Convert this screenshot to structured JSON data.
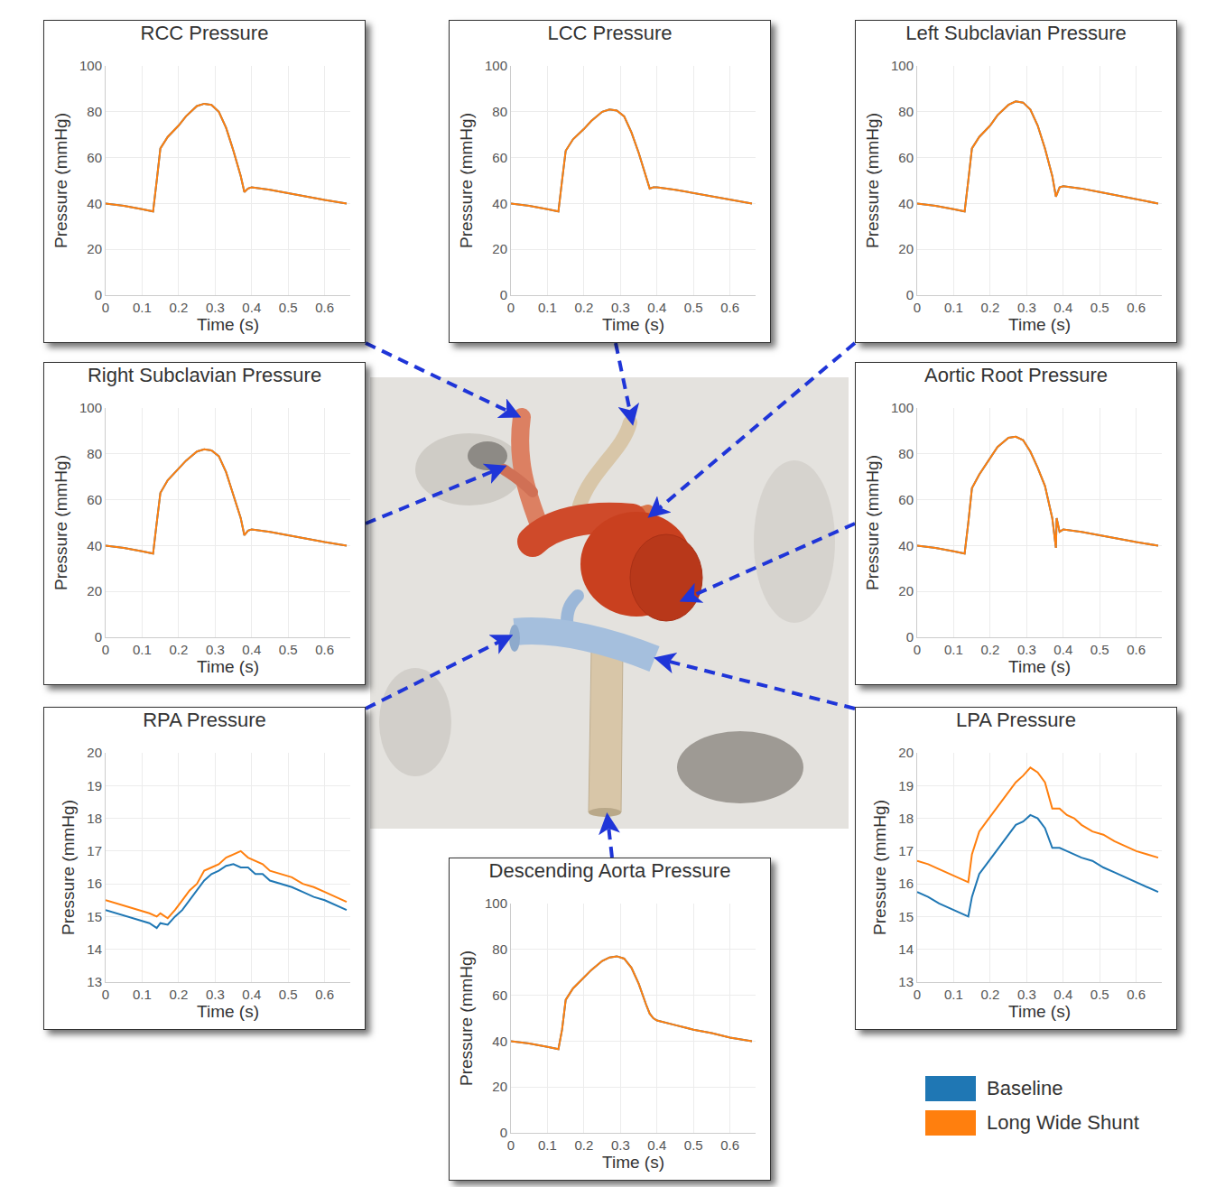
{
  "chart_data": [
    {
      "type": "line",
      "title": "RCC Pressure",
      "x_label": "Time (s)",
      "y_label": "Pressure (mmHg)",
      "x": [
        0,
        0.05,
        0.1,
        0.13,
        0.14,
        0.15,
        0.17,
        0.2,
        0.22,
        0.25,
        0.27,
        0.29,
        0.31,
        0.33,
        0.35,
        0.37,
        0.38,
        0.39,
        0.4,
        0.45,
        0.5,
        0.55,
        0.6,
        0.66
      ],
      "series": [
        {
          "name": "Baseline",
          "color": "#1f77b4",
          "values": [
            40,
            39,
            37.5,
            36.5,
            50,
            64,
            69,
            74,
            78,
            82.5,
            83.5,
            83,
            80,
            73,
            63,
            52,
            45,
            46.5,
            47,
            46,
            44.5,
            43,
            41.5,
            40
          ]
        },
        {
          "name": "Long Wide Shunt",
          "color": "#ff7f0e",
          "values": [
            40,
            39,
            37.5,
            36.5,
            50,
            64,
            69,
            74,
            78,
            82.5,
            83.5,
            83,
            80,
            73,
            63,
            52,
            45,
            46.5,
            47,
            46,
            44.5,
            43,
            41.5,
            40
          ]
        }
      ],
      "xlim": [
        0,
        0.67
      ],
      "xticks": [
        0,
        0.1,
        0.2,
        0.3,
        0.4,
        0.5,
        0.6
      ],
      "ylim": [
        0,
        100
      ],
      "yticks": [
        0,
        20,
        40,
        60,
        80,
        100
      ],
      "grid": true
    },
    {
      "type": "line",
      "title": "LCC Pressure",
      "x_label": "Time (s)",
      "y_label": "Pressure (mmHg)",
      "x": [
        0,
        0.05,
        0.1,
        0.13,
        0.14,
        0.15,
        0.17,
        0.2,
        0.22,
        0.25,
        0.27,
        0.29,
        0.31,
        0.33,
        0.35,
        0.37,
        0.38,
        0.39,
        0.4,
        0.45,
        0.5,
        0.55,
        0.6,
        0.66
      ],
      "series": [
        {
          "name": "Baseline",
          "color": "#1f77b4",
          "values": [
            40,
            39,
            37.5,
            36.5,
            50,
            63,
            68,
            72.5,
            76,
            80,
            81,
            80.5,
            78,
            71,
            62,
            52,
            46.5,
            47,
            47,
            46,
            44.5,
            43,
            41.5,
            40
          ]
        },
        {
          "name": "Long Wide Shunt",
          "color": "#ff7f0e",
          "values": [
            40,
            39,
            37.5,
            36.5,
            50,
            63,
            68,
            72.5,
            76,
            80,
            81,
            80.5,
            78,
            71,
            62,
            52,
            46.5,
            47,
            47,
            46,
            44.5,
            43,
            41.5,
            40
          ]
        }
      ],
      "xlim": [
        0,
        0.67
      ],
      "xticks": [
        0,
        0.1,
        0.2,
        0.3,
        0.4,
        0.5,
        0.6
      ],
      "ylim": [
        0,
        100
      ],
      "yticks": [
        0,
        20,
        40,
        60,
        80,
        100
      ],
      "grid": true
    },
    {
      "type": "line",
      "title": "Left Subclavian Pressure",
      "x_label": "Time (s)",
      "y_label": "Pressure (mmHg)",
      "x": [
        0,
        0.05,
        0.1,
        0.13,
        0.14,
        0.15,
        0.17,
        0.2,
        0.22,
        0.25,
        0.27,
        0.29,
        0.31,
        0.33,
        0.35,
        0.37,
        0.38,
        0.39,
        0.4,
        0.45,
        0.5,
        0.55,
        0.6,
        0.66
      ],
      "series": [
        {
          "name": "Baseline",
          "color": "#1f77b4",
          "values": [
            40,
            39,
            37.5,
            36.5,
            50,
            64,
            69,
            74,
            78.5,
            83,
            84.5,
            84,
            81,
            74,
            64,
            52,
            43,
            47,
            47.5,
            46.5,
            45,
            43.5,
            42,
            40
          ]
        },
        {
          "name": "Long Wide Shunt",
          "color": "#ff7f0e",
          "values": [
            40,
            39,
            37.5,
            36.5,
            50,
            64,
            69,
            74,
            78.5,
            83,
            84.5,
            84,
            81,
            74,
            64,
            52,
            43,
            47,
            47.5,
            46.5,
            45,
            43.5,
            42,
            40
          ]
        }
      ],
      "xlim": [
        0,
        0.67
      ],
      "xticks": [
        0,
        0.1,
        0.2,
        0.3,
        0.4,
        0.5,
        0.6
      ],
      "ylim": [
        0,
        100
      ],
      "yticks": [
        0,
        20,
        40,
        60,
        80,
        100
      ],
      "grid": true
    },
    {
      "type": "line",
      "title": "Right Subclavian Pressure",
      "x_label": "Time (s)",
      "y_label": "Pressure (mmHg)",
      "x": [
        0,
        0.05,
        0.1,
        0.13,
        0.14,
        0.15,
        0.17,
        0.2,
        0.22,
        0.25,
        0.27,
        0.29,
        0.31,
        0.33,
        0.35,
        0.37,
        0.38,
        0.39,
        0.4,
        0.45,
        0.5,
        0.55,
        0.6,
        0.66
      ],
      "series": [
        {
          "name": "Baseline",
          "color": "#1f77b4",
          "values": [
            40,
            39,
            37.5,
            36.5,
            50,
            63,
            68.5,
            73.5,
            77,
            81,
            82,
            81.5,
            79,
            72,
            62,
            52,
            44.5,
            46.5,
            47,
            46,
            44.5,
            43,
            41.5,
            40
          ]
        },
        {
          "name": "Long Wide Shunt",
          "color": "#ff7f0e",
          "values": [
            40,
            39,
            37.5,
            36.5,
            50,
            63,
            68.5,
            73.5,
            77,
            81,
            82,
            81.5,
            79,
            72,
            62,
            52,
            44.5,
            46.5,
            47,
            46,
            44.5,
            43,
            41.5,
            40
          ]
        }
      ],
      "xlim": [
        0,
        0.67
      ],
      "xticks": [
        0,
        0.1,
        0.2,
        0.3,
        0.4,
        0.5,
        0.6
      ],
      "ylim": [
        0,
        100
      ],
      "yticks": [
        0,
        20,
        40,
        60,
        80,
        100
      ],
      "grid": true
    },
    {
      "type": "line",
      "title": "Aortic Root Pressure",
      "x_label": "Time (s)",
      "y_label": "Pressure (mmHg)",
      "x": [
        0,
        0.05,
        0.1,
        0.13,
        0.14,
        0.15,
        0.17,
        0.2,
        0.22,
        0.25,
        0.27,
        0.29,
        0.31,
        0.33,
        0.35,
        0.37,
        0.38,
        0.382,
        0.39,
        0.4,
        0.45,
        0.5,
        0.55,
        0.6,
        0.66
      ],
      "series": [
        {
          "name": "Baseline",
          "color": "#1f77b4",
          "values": [
            40,
            39,
            37.5,
            36.5,
            50,
            65,
            71,
            78,
            83,
            87,
            87.5,
            86,
            81,
            74,
            66,
            52,
            39,
            52,
            46,
            47,
            46,
            44.5,
            43,
            41.5,
            40
          ]
        },
        {
          "name": "Long Wide Shunt",
          "color": "#ff7f0e",
          "values": [
            40,
            39,
            37.5,
            36.5,
            50,
            65,
            71,
            78,
            83,
            87,
            87.5,
            86,
            81,
            74,
            66,
            52,
            39,
            52,
            46,
            47,
            46,
            44.5,
            43,
            41.5,
            40
          ]
        }
      ],
      "xlim": [
        0,
        0.67
      ],
      "xticks": [
        0,
        0.1,
        0.2,
        0.3,
        0.4,
        0.5,
        0.6
      ],
      "ylim": [
        0,
        100
      ],
      "yticks": [
        0,
        20,
        40,
        60,
        80,
        100
      ],
      "grid": true
    },
    {
      "type": "line",
      "title": "RPA Pressure",
      "x_label": "Time (s)",
      "y_label": "Pressure (mmHg)",
      "x": [
        0,
        0.03,
        0.06,
        0.09,
        0.12,
        0.14,
        0.15,
        0.17,
        0.19,
        0.21,
        0.23,
        0.25,
        0.27,
        0.29,
        0.31,
        0.33,
        0.35,
        0.37,
        0.39,
        0.41,
        0.43,
        0.45,
        0.48,
        0.51,
        0.54,
        0.57,
        0.6,
        0.63,
        0.66
      ],
      "series": [
        {
          "name": "Baseline",
          "color": "#1f77b4",
          "values": [
            15.2,
            15.1,
            15.0,
            14.9,
            14.8,
            14.65,
            14.8,
            14.75,
            15.0,
            15.2,
            15.5,
            15.8,
            16.1,
            16.3,
            16.4,
            16.55,
            16.6,
            16.5,
            16.5,
            16.3,
            16.3,
            16.1,
            16.0,
            15.9,
            15.75,
            15.6,
            15.5,
            15.35,
            15.2
          ]
        },
        {
          "name": "Long Wide Shunt",
          "color": "#ff7f0e",
          "values": [
            15.5,
            15.4,
            15.3,
            15.2,
            15.1,
            15.0,
            15.1,
            14.95,
            15.2,
            15.5,
            15.8,
            16.0,
            16.4,
            16.5,
            16.6,
            16.8,
            16.9,
            17.0,
            16.8,
            16.7,
            16.6,
            16.4,
            16.3,
            16.2,
            16.0,
            15.9,
            15.75,
            15.6,
            15.45
          ]
        }
      ],
      "xlim": [
        0,
        0.67
      ],
      "xticks": [
        0,
        0.1,
        0.2,
        0.3,
        0.4,
        0.5,
        0.6
      ],
      "ylim": [
        13,
        20
      ],
      "yticks": [
        13,
        14,
        15,
        16,
        17,
        18,
        19,
        20
      ],
      "grid": true
    },
    {
      "type": "line",
      "title": "LPA Pressure",
      "x_label": "Time (s)",
      "y_label": "Pressure (mmHg)",
      "x": [
        0,
        0.03,
        0.06,
        0.09,
        0.12,
        0.14,
        0.15,
        0.17,
        0.19,
        0.21,
        0.23,
        0.25,
        0.27,
        0.29,
        0.31,
        0.33,
        0.35,
        0.37,
        0.39,
        0.41,
        0.43,
        0.45,
        0.48,
        0.51,
        0.54,
        0.57,
        0.6,
        0.63,
        0.66
      ],
      "series": [
        {
          "name": "Baseline",
          "color": "#1f77b4",
          "values": [
            15.75,
            15.6,
            15.4,
            15.25,
            15.1,
            15.0,
            15.6,
            16.3,
            16.6,
            16.9,
            17.2,
            17.5,
            17.8,
            17.9,
            18.1,
            18.0,
            17.7,
            17.1,
            17.1,
            17.0,
            16.9,
            16.8,
            16.7,
            16.5,
            16.35,
            16.2,
            16.05,
            15.9,
            15.75
          ]
        },
        {
          "name": "Long Wide Shunt",
          "color": "#ff7f0e",
          "values": [
            16.7,
            16.6,
            16.45,
            16.3,
            16.15,
            16.05,
            16.9,
            17.6,
            17.9,
            18.2,
            18.5,
            18.8,
            19.1,
            19.3,
            19.55,
            19.4,
            19.1,
            18.3,
            18.3,
            18.1,
            18.0,
            17.8,
            17.6,
            17.5,
            17.3,
            17.15,
            17.0,
            16.9,
            16.8
          ]
        }
      ],
      "xlim": [
        0,
        0.67
      ],
      "xticks": [
        0,
        0.1,
        0.2,
        0.3,
        0.4,
        0.5,
        0.6
      ],
      "ylim": [
        13,
        20
      ],
      "yticks": [
        13,
        14,
        15,
        16,
        17,
        18,
        19,
        20
      ],
      "grid": true
    },
    {
      "type": "line",
      "title": "Descending Aorta Pressure",
      "x_label": "Time (s)",
      "y_label": "Pressure (mmHg)",
      "x": [
        0,
        0.05,
        0.1,
        0.13,
        0.14,
        0.15,
        0.17,
        0.2,
        0.22,
        0.25,
        0.27,
        0.29,
        0.31,
        0.33,
        0.35,
        0.37,
        0.38,
        0.39,
        0.4,
        0.45,
        0.5,
        0.55,
        0.6,
        0.66
      ],
      "series": [
        {
          "name": "Baseline",
          "color": "#1f77b4",
          "values": [
            40,
            39,
            37.5,
            36.5,
            45,
            58,
            63,
            68,
            71,
            75,
            76.5,
            77,
            76,
            72,
            65,
            56,
            52,
            50,
            49,
            47,
            45,
            43.5,
            41.5,
            40
          ]
        },
        {
          "name": "Long Wide Shunt",
          "color": "#ff7f0e",
          "values": [
            40,
            39,
            37.5,
            36.5,
            45,
            58,
            63,
            68,
            71,
            75,
            76.5,
            77,
            76,
            72,
            65,
            56,
            52,
            50,
            49,
            47,
            45,
            43.5,
            41.5,
            40
          ]
        }
      ],
      "xlim": [
        0,
        0.67
      ],
      "xticks": [
        0,
        0.1,
        0.2,
        0.3,
        0.4,
        0.5,
        0.6
      ],
      "ylim": [
        0,
        100
      ],
      "yticks": [
        0,
        20,
        40,
        60,
        80,
        100
      ],
      "grid": true
    }
  ]
}
